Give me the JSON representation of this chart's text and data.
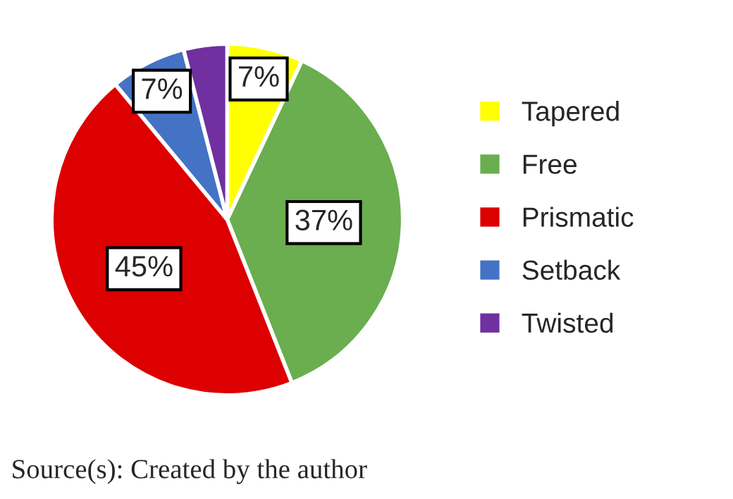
{
  "chart_data": {
    "type": "pie",
    "categories": [
      "Tapered",
      "Free",
      "Prismatic",
      "Setback",
      "Twisted"
    ],
    "values": [
      7,
      37,
      45,
      7,
      4
    ],
    "value_labels": [
      "7%",
      "37%",
      "45%",
      "7%",
      null
    ],
    "colors": [
      "#ffff00",
      "#6aae4f",
      "#dd0000",
      "#4473c5",
      "#7030a0"
    ],
    "legend": "right",
    "annotations": [
      "Source(s): Created by the author"
    ]
  }
}
